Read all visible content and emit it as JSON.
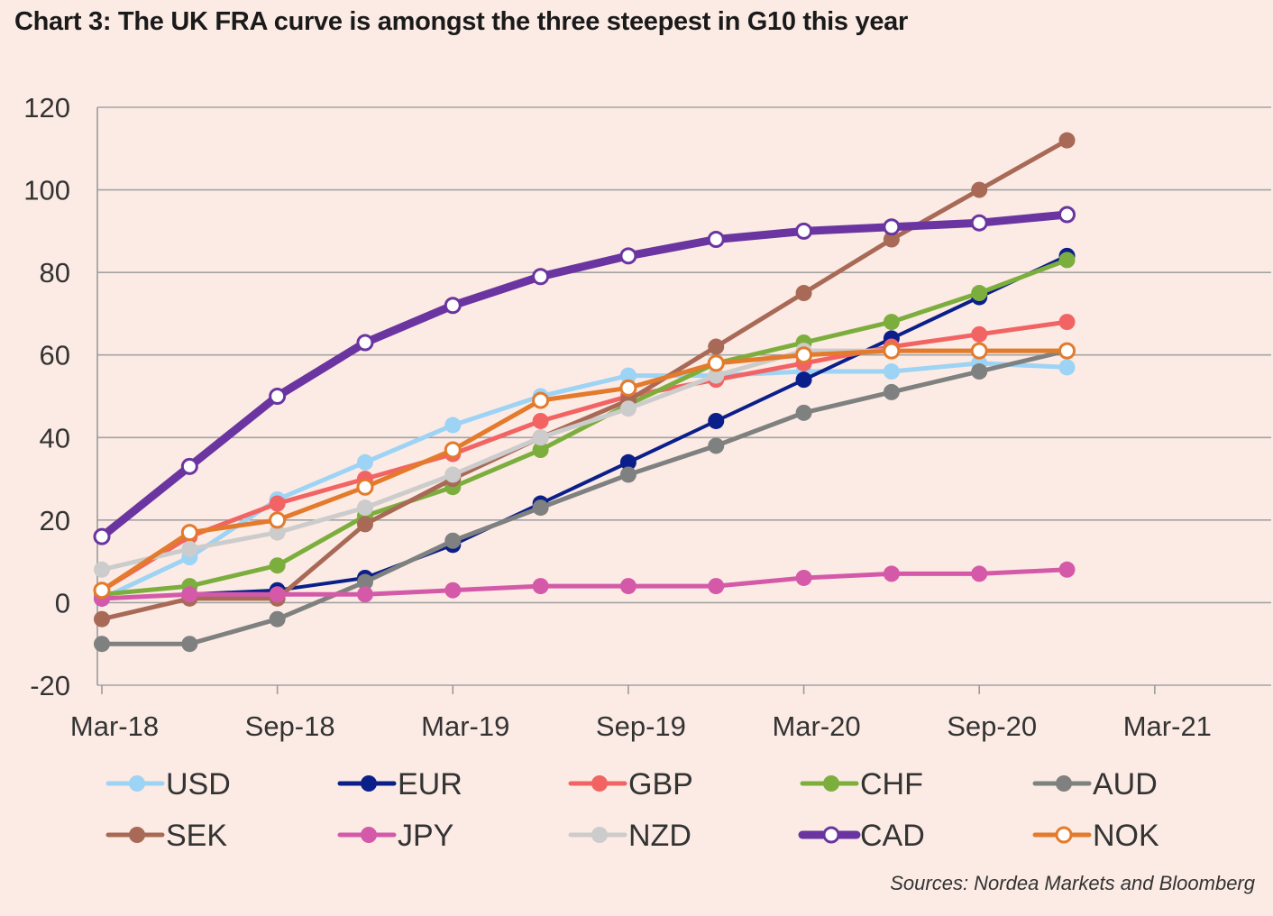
{
  "chart_data": {
    "type": "line",
    "title": "Chart 3: The UK FRA curve is amongst the three steepest in G10 this year",
    "xlabel": "",
    "ylabel": "",
    "ylim": [
      -20,
      120
    ],
    "yticks": [
      120,
      100,
      80,
      60,
      40,
      20,
      0,
      -20
    ],
    "xticks": [
      "Mar-18",
      "Sep-18",
      "Mar-19",
      "Sep-19",
      "Mar-20",
      "Sep-20",
      "Mar-21"
    ],
    "x": [
      0,
      3,
      6,
      9,
      12,
      15,
      18,
      21,
      24,
      27,
      30,
      33
    ],
    "x_unit": "months since Mar-18 (point spacing 3 months, Mar-18 to Dec-20)",
    "grid": true,
    "series": [
      {
        "name": "USD",
        "color": "#9dd3f5",
        "marker": "filled",
        "values": [
          1,
          11,
          25,
          34,
          43,
          50,
          55,
          55,
          56,
          56,
          58,
          57
        ]
      },
      {
        "name": "EUR",
        "color": "#0b1f8a",
        "marker": "filled",
        "values": [
          1,
          2,
          3,
          6,
          14,
          24,
          34,
          44,
          54,
          64,
          74,
          84
        ]
      },
      {
        "name": "GBP",
        "color": "#f26464",
        "marker": "filled",
        "values": [
          3,
          16,
          24,
          30,
          36,
          44,
          50,
          54,
          58,
          62,
          65,
          68
        ]
      },
      {
        "name": "CHF",
        "color": "#7cae3e",
        "marker": "filled",
        "values": [
          2,
          4,
          9,
          21,
          28,
          37,
          48,
          58,
          63,
          68,
          75,
          83
        ]
      },
      {
        "name": "AUD",
        "color": "#7f8080",
        "marker": "filled",
        "values": [
          -10,
          -10,
          -4,
          5,
          15,
          23,
          31,
          38,
          46,
          51,
          56,
          61
        ]
      },
      {
        "name": "SEK",
        "color": "#a86a56",
        "marker": "filled",
        "values": [
          -4,
          1,
          1,
          19,
          30,
          40,
          49,
          62,
          75,
          88,
          100,
          112
        ]
      },
      {
        "name": "JPY",
        "color": "#d45aa9",
        "marker": "filled",
        "values": [
          1,
          2,
          2,
          2,
          3,
          4,
          4,
          4,
          6,
          7,
          7,
          8
        ]
      },
      {
        "name": "NZD",
        "color": "#cccccc",
        "marker": "filled",
        "values": [
          8,
          13,
          17,
          23,
          31,
          40,
          47,
          55,
          61,
          61,
          61,
          61
        ]
      },
      {
        "name": "CAD",
        "color": "#6a35a0",
        "marker": "hollow",
        "values": [
          16,
          33,
          50,
          63,
          72,
          79,
          84,
          88,
          90,
          91,
          92,
          94
        ]
      },
      {
        "name": "NOK",
        "color": "#e37a2c",
        "marker": "hollow",
        "values": [
          3,
          17,
          20,
          28,
          37,
          49,
          52,
          58,
          60,
          61,
          61,
          61
        ]
      }
    ],
    "legend": [
      "USD",
      "EUR",
      "GBP",
      "CHF",
      "AUD",
      "SEK",
      "JPY",
      "NZD",
      "CAD",
      "NOK"
    ],
    "legend_placement": "bottom, two rows of five",
    "source": "Sources: Nordea Markets and Bloomberg"
  }
}
